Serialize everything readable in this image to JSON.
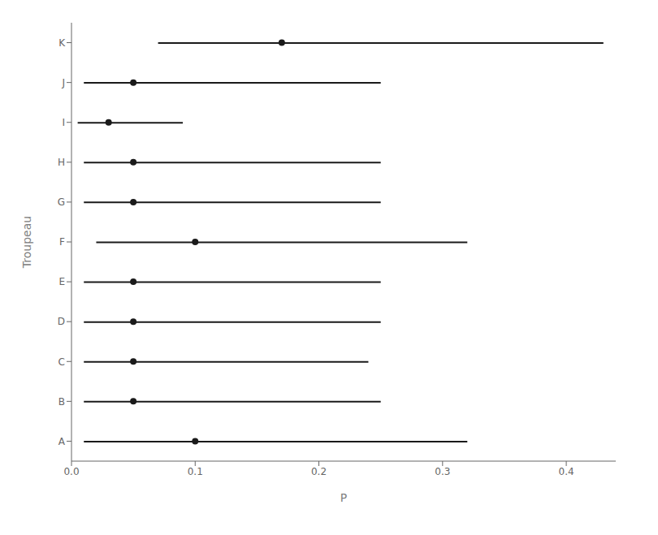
{
  "chart_data": {
    "type": "scatter",
    "categories": [
      "A",
      "B",
      "C",
      "D",
      "E",
      "F",
      "G",
      "H",
      "I",
      "J",
      "K"
    ],
    "values": [
      0.1,
      0.05,
      0.05,
      0.05,
      0.05,
      0.1,
      0.05,
      0.05,
      0.03,
      0.05,
      0.17
    ],
    "ci_low": [
      0.01,
      0.01,
      0.01,
      0.01,
      0.01,
      0.02,
      0.01,
      0.01,
      0.005,
      0.01,
      0.07
    ],
    "ci_high": [
      0.32,
      0.25,
      0.24,
      0.25,
      0.25,
      0.32,
      0.25,
      0.25,
      0.09,
      0.25,
      0.43
    ],
    "xlabel": "P",
    "ylabel": "Troupeau",
    "xlim": [
      0.0,
      0.44
    ],
    "xticks": [
      {
        "value": 0.0,
        "label": "0.0"
      },
      0.1,
      0.2,
      0.3,
      0.4
    ],
    "color": "#1a1a1a",
    "grid": false
  }
}
